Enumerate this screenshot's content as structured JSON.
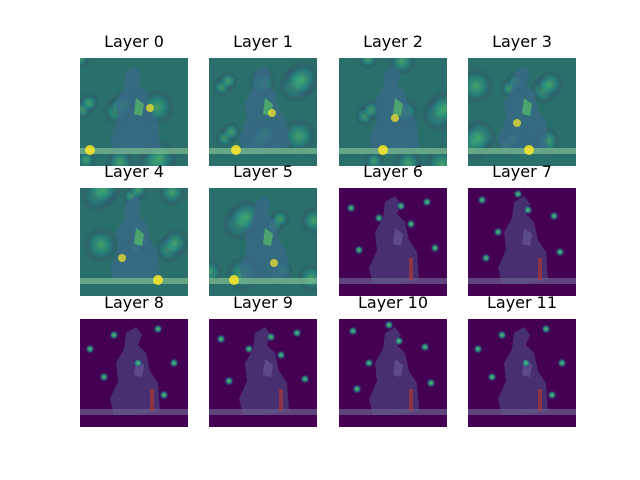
{
  "figure": {
    "panels": [
      {
        "title": "Layer 0",
        "variant": "early"
      },
      {
        "title": "Layer 1",
        "variant": "early"
      },
      {
        "title": "Layer 2",
        "variant": "early"
      },
      {
        "title": "Layer 3",
        "variant": "early"
      },
      {
        "title": "Layer 4",
        "variant": "early"
      },
      {
        "title": "Layer 5",
        "variant": "early"
      },
      {
        "title": "Layer 6",
        "variant": "late"
      },
      {
        "title": "Layer 7",
        "variant": "late"
      },
      {
        "title": "Layer 8",
        "variant": "late"
      },
      {
        "title": "Layer 9",
        "variant": "late"
      },
      {
        "title": "Layer 10",
        "variant": "late"
      },
      {
        "title": "Layer 11",
        "variant": "late"
      }
    ],
    "colors": {
      "dark": "#440154",
      "mid": "#21918c",
      "bright": "#5ec962",
      "hot": "#fde725",
      "teal_bg": "#2a6f6b"
    }
  }
}
